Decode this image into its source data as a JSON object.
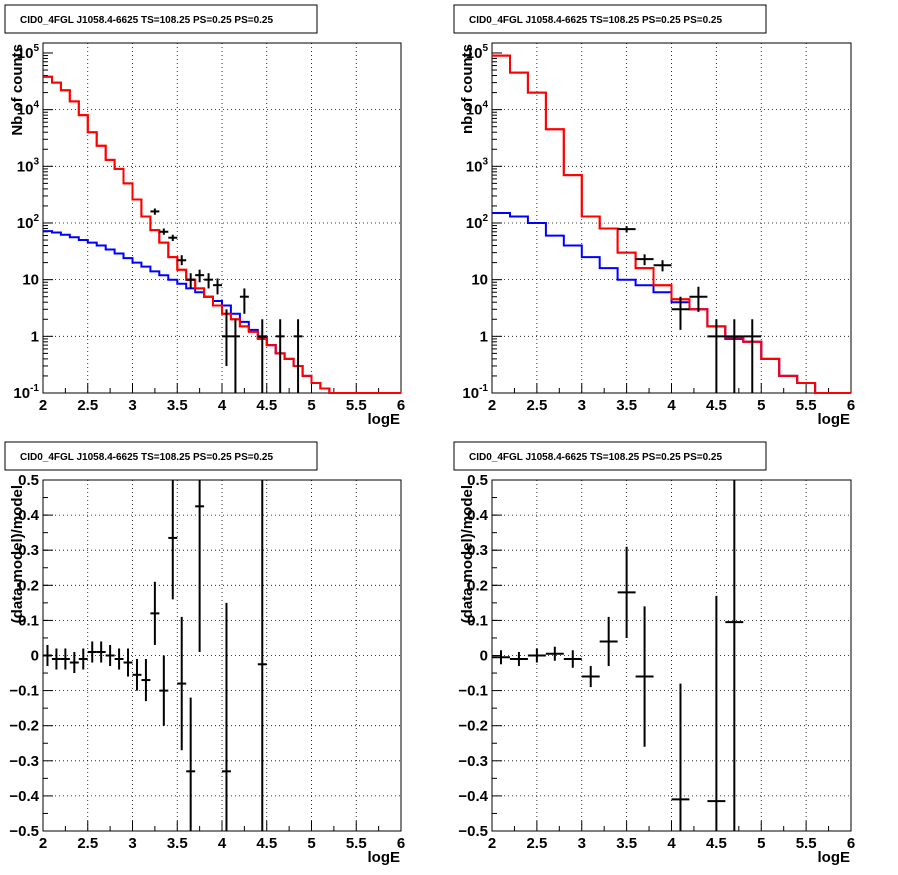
{
  "window": {
    "background": "#ffffff",
    "series_colors": {
      "model_total": "#ff0000",
      "model_source": "#0000ff",
      "data": "#000000"
    }
  },
  "chart_data": [
    {
      "type": "histogram-line",
      "title": "CID0_4FGL J1058.4-6625 TS=108.25 PS=0.25 PS=0.25",
      "xlabel": "logE",
      "ylabel": "Nb of counts",
      "xlim": [
        2,
        6
      ],
      "ylim": [
        0.1,
        150000
      ],
      "log_y": true,
      "grid": true,
      "xticks": [
        "2",
        "2.5",
        "3",
        "3.5",
        "4",
        "4.5",
        "5",
        "5.5",
        "6"
      ],
      "yticks": [
        {
          "v": 0.1,
          "base": "10",
          "exp": "-1"
        },
        {
          "v": 1,
          "text": "1"
        },
        {
          "v": 10,
          "text": "10"
        },
        {
          "v": 100,
          "base": "10",
          "exp": "2"
        },
        {
          "v": 1000,
          "base": "10",
          "exp": "3"
        },
        {
          "v": 10000,
          "base": "10",
          "exp": "4"
        },
        {
          "v": 100000,
          "base": "10",
          "exp": "5"
        }
      ],
      "bin_edges": [
        2.0,
        2.1,
        2.2,
        2.3,
        2.4,
        2.5,
        2.6,
        2.7,
        2.8,
        2.9,
        3.0,
        3.1,
        3.2,
        3.3,
        3.4,
        3.5,
        3.6,
        3.7,
        3.8,
        3.9,
        4.0,
        4.1,
        4.2,
        4.3,
        4.4,
        4.5,
        4.6,
        4.7,
        4.8,
        4.9,
        5.0,
        5.1,
        5.2,
        5.3,
        5.4,
        5.5,
        5.6,
        5.7,
        5.8,
        5.9,
        6.0
      ],
      "series": [
        {
          "name": "",
          "color": "#ff0000",
          "values": [
            38000,
            30000,
            22000,
            14000,
            8000,
            4000,
            2300,
            1300,
            900,
            500,
            260,
            130,
            75,
            45,
            25,
            15,
            10,
            7,
            5,
            3.5,
            2.5,
            2,
            1.5,
            1.2,
            0.9,
            0.7,
            0.5,
            0.4,
            0.3,
            0.2,
            0.15,
            0.12,
            0.1,
            0.1,
            0.1,
            0.1,
            0.1,
            0.1,
            0.1,
            0.1
          ]
        },
        {
          "name": "",
          "color": "#0000ff",
          "values": [
            72,
            68,
            62,
            56,
            50,
            45,
            40,
            34,
            29,
            24,
            20,
            17,
            14,
            12,
            10,
            8.5,
            7,
            6,
            5,
            4.2,
            3.5,
            2.5,
            1.8,
            1.3,
            0.95,
            0.7,
            0.5,
            0.4,
            0.3,
            0.2,
            0.15,
            0.12,
            0.1,
            0.1,
            0.1,
            0.1,
            0.1,
            0.1,
            0.1,
            0.1
          ]
        },
        {
          "name": "",
          "color": "#ff0000",
          "values": [
            38000,
            30000,
            22000,
            14000,
            8000,
            4000,
            2300,
            1300,
            900,
            500,
            260,
            130,
            75,
            45,
            25,
            15,
            10,
            7,
            5,
            3.5,
            2.5,
            2,
            1.5,
            1.2,
            0.9,
            0.7,
            0.5,
            0.4,
            0.3,
            0.2,
            0.15,
            0.12,
            0.1,
            0.1,
            0.1,
            0.1,
            0.1,
            0.1,
            0.1,
            0.1
          ]
        }
      ],
      "points": [
        {
          "x": 3.25,
          "y": 160,
          "lo": 140,
          "hi": 180
        },
        {
          "x": 3.35,
          "y": 70,
          "lo": 62,
          "hi": 80
        },
        {
          "x": 3.45,
          "y": 55,
          "lo": 48,
          "hi": 62
        },
        {
          "x": 3.55,
          "y": 22,
          "lo": 18,
          "hi": 27
        },
        {
          "x": 3.65,
          "y": 10,
          "lo": 7,
          "hi": 13
        },
        {
          "x": 3.75,
          "y": 12,
          "lo": 9,
          "hi": 15
        },
        {
          "x": 3.85,
          "y": 10,
          "lo": 7,
          "hi": 13
        },
        {
          "x": 3.95,
          "y": 8,
          "lo": 5.5,
          "hi": 10.5
        },
        {
          "x": 4.05,
          "y": 1,
          "lo": 0.3,
          "hi": 3
        },
        {
          "x": 4.15,
          "y": 1,
          "lo": 0.1,
          "hi": 2
        },
        {
          "x": 4.25,
          "y": 5,
          "lo": 2.5,
          "hi": 7
        },
        {
          "x": 4.45,
          "y": 1,
          "lo": 0.1,
          "hi": 2
        },
        {
          "x": 4.65,
          "y": 1,
          "lo": 0.1,
          "hi": 2
        },
        {
          "x": 4.85,
          "y": 1,
          "lo": 0.1,
          "hi": 2
        }
      ]
    },
    {
      "type": "histogram-line",
      "title": "CID0_4FGL J1058.4-6625 TS=108.25 PS=0.25 PS=0.25",
      "xlabel": "logE",
      "ylabel": "nb of counts",
      "xlim": [
        2,
        6
      ],
      "ylim": [
        0.1,
        150000
      ],
      "log_y": true,
      "grid": true,
      "xticks": [
        "2",
        "2.5",
        "3",
        "3.5",
        "4",
        "4.5",
        "5",
        "5.5",
        "6"
      ],
      "yticks": [
        {
          "v": 0.1,
          "base": "10",
          "exp": "-1"
        },
        {
          "v": 1,
          "text": "1"
        },
        {
          "v": 10,
          "text": "10"
        },
        {
          "v": 100,
          "base": "10",
          "exp": "2"
        },
        {
          "v": 1000,
          "base": "10",
          "exp": "3"
        },
        {
          "v": 10000,
          "base": "10",
          "exp": "4"
        },
        {
          "v": 100000,
          "base": "10",
          "exp": "5"
        }
      ],
      "bin_edges": [
        2.0,
        2.2,
        2.4,
        2.6,
        2.8,
        3.0,
        3.2,
        3.4,
        3.6,
        3.8,
        4.0,
        4.2,
        4.4,
        4.6,
        4.8,
        5.0,
        5.2,
        5.4,
        5.6,
        5.8,
        6.0
      ],
      "series": [
        {
          "name": "",
          "color": "#ff0000",
          "values": [
            90000,
            45000,
            20000,
            4500,
            700,
            130,
            80,
            30,
            16,
            8,
            4.5,
            3,
            1.5,
            0.95,
            0.8,
            0.4,
            0.2,
            0.15,
            0.1,
            0.1
          ]
        },
        {
          "name": "",
          "color": "#0000ff",
          "values": [
            150,
            130,
            100,
            60,
            40,
            25,
            16,
            10,
            8,
            6,
            4,
            3,
            1.5,
            0.9,
            0.8,
            0.4,
            0.2,
            0.15,
            0.1,
            0.1
          ]
        },
        {
          "name": "",
          "color": "#ff0000",
          "values": [
            90000,
            45000,
            20000,
            4500,
            700,
            130,
            80,
            30,
            16,
            8,
            4.5,
            3,
            1.5,
            0.95,
            0.8,
            0.4,
            0.2,
            0.15,
            0.1,
            0.1
          ]
        }
      ],
      "points": [
        {
          "x": 3.5,
          "y": 78,
          "lo": 68,
          "hi": 88
        },
        {
          "x": 3.7,
          "y": 23,
          "lo": 18,
          "hi": 28
        },
        {
          "x": 3.9,
          "y": 18,
          "lo": 14,
          "hi": 22
        },
        {
          "x": 4.1,
          "y": 3,
          "lo": 1.3,
          "hi": 5
        },
        {
          "x": 4.3,
          "y": 5,
          "lo": 2.7,
          "hi": 7.5
        },
        {
          "x": 4.5,
          "y": 1,
          "lo": 0.1,
          "hi": 2
        },
        {
          "x": 4.7,
          "y": 1,
          "lo": 0.1,
          "hi": 2
        },
        {
          "x": 4.9,
          "y": 1,
          "lo": 0.1,
          "hi": 2
        }
      ]
    },
    {
      "type": "scatter",
      "title": "CID0_4FGL J1058.4-6625 TS=108.25 PS=0.25 PS=0.25",
      "xlabel": "logE",
      "ylabel": "(data-model)/model",
      "xlim": [
        2,
        6
      ],
      "ylim": [
        -0.5,
        0.5
      ],
      "log_y": false,
      "grid": true,
      "xticks": [
        "2",
        "2.5",
        "3",
        "3.5",
        "4",
        "4.5",
        "5",
        "5.5",
        "6"
      ],
      "yticks": [
        {
          "v": -0.5,
          "text": "−0.5"
        },
        {
          "v": -0.4,
          "text": "−0.4"
        },
        {
          "v": -0.3,
          "text": "−0.3"
        },
        {
          "v": -0.2,
          "text": "−0.2"
        },
        {
          "v": -0.1,
          "text": "−0.1"
        },
        {
          "v": 0,
          "text": "0"
        },
        {
          "v": 0.1,
          "text": "0.1"
        },
        {
          "v": 0.2,
          "text": "0.2"
        },
        {
          "v": 0.3,
          "text": "0.3"
        },
        {
          "v": 0.4,
          "text": "0.4"
        },
        {
          "v": 0.5,
          "text": "0.5"
        }
      ],
      "points": [
        {
          "x": 2.05,
          "y": 0.0,
          "lo": -0.03,
          "hi": 0.03,
          "hw": 0.05
        },
        {
          "x": 2.15,
          "y": -0.01,
          "lo": -0.04,
          "hi": 0.02,
          "hw": 0.05
        },
        {
          "x": 2.25,
          "y": -0.01,
          "lo": -0.04,
          "hi": 0.02,
          "hw": 0.05
        },
        {
          "x": 2.35,
          "y": -0.02,
          "lo": -0.05,
          "hi": 0.01,
          "hw": 0.05
        },
        {
          "x": 2.45,
          "y": -0.01,
          "lo": -0.04,
          "hi": 0.02,
          "hw": 0.05
        },
        {
          "x": 2.55,
          "y": 0.01,
          "lo": -0.02,
          "hi": 0.04,
          "hw": 0.05
        },
        {
          "x": 2.65,
          "y": 0.01,
          "lo": -0.02,
          "hi": 0.04,
          "hw": 0.05
        },
        {
          "x": 2.75,
          "y": 0.0,
          "lo": -0.03,
          "hi": 0.03,
          "hw": 0.05
        },
        {
          "x": 2.85,
          "y": -0.01,
          "lo": -0.04,
          "hi": 0.02,
          "hw": 0.05
        },
        {
          "x": 2.95,
          "y": -0.02,
          "lo": -0.06,
          "hi": 0.02,
          "hw": 0.05
        },
        {
          "x": 3.05,
          "y": -0.055,
          "lo": -0.1,
          "hi": -0.01,
          "hw": 0.05
        },
        {
          "x": 3.15,
          "y": -0.07,
          "lo": -0.13,
          "hi": -0.01,
          "hw": 0.05
        },
        {
          "x": 3.25,
          "y": 0.12,
          "lo": 0.03,
          "hi": 0.21,
          "hw": 0.05
        },
        {
          "x": 3.35,
          "y": -0.1,
          "lo": -0.2,
          "hi": 0.0,
          "hw": 0.05
        },
        {
          "x": 3.45,
          "y": 0.335,
          "lo": 0.16,
          "hi": 0.5,
          "hw": 0.05
        },
        {
          "x": 3.55,
          "y": -0.08,
          "lo": -0.27,
          "hi": 0.11,
          "hw": 0.05
        },
        {
          "x": 3.65,
          "y": -0.33,
          "lo": -0.5,
          "hi": -0.12,
          "hw": 0.05
        },
        {
          "x": 3.75,
          "y": 0.425,
          "lo": 0.01,
          "hi": 0.5,
          "hw": 0.05
        },
        {
          "x": 4.05,
          "y": -0.33,
          "lo": -0.5,
          "hi": 0.15,
          "hw": 0.05
        },
        {
          "x": 4.45,
          "y": -0.025,
          "lo": -0.5,
          "hi": 0.5,
          "hw": 0.05
        }
      ]
    },
    {
      "type": "scatter",
      "title": "CID0_4FGL J1058.4-6625 TS=108.25 PS=0.25 PS=0.25",
      "xlabel": "logE",
      "ylabel": "(data-model)/model",
      "xlim": [
        2,
        6
      ],
      "ylim": [
        -0.5,
        0.5
      ],
      "log_y": false,
      "grid": true,
      "xticks": [
        "2",
        "2.5",
        "3",
        "3.5",
        "4",
        "4.5",
        "5",
        "5.5",
        "6"
      ],
      "yticks": [
        {
          "v": -0.5,
          "text": "−0.5"
        },
        {
          "v": -0.4,
          "text": "−0.4"
        },
        {
          "v": -0.3,
          "text": "−0.3"
        },
        {
          "v": -0.2,
          "text": "−0.2"
        },
        {
          "v": -0.1,
          "text": "−0.1"
        },
        {
          "v": 0,
          "text": "0"
        },
        {
          "v": 0.1,
          "text": "0.1"
        },
        {
          "v": 0.2,
          "text": "0.2"
        },
        {
          "v": 0.3,
          "text": "0.3"
        },
        {
          "v": 0.4,
          "text": "0.4"
        },
        {
          "v": 0.5,
          "text": "0.5"
        }
      ],
      "points": [
        {
          "x": 2.1,
          "y": -0.005,
          "lo": -0.025,
          "hi": 0.015,
          "hw": 0.1
        },
        {
          "x": 2.3,
          "y": -0.01,
          "lo": -0.03,
          "hi": 0.01,
          "hw": 0.1
        },
        {
          "x": 2.5,
          "y": 0.0,
          "lo": -0.02,
          "hi": 0.02,
          "hw": 0.1
        },
        {
          "x": 2.7,
          "y": 0.005,
          "lo": -0.015,
          "hi": 0.025,
          "hw": 0.1
        },
        {
          "x": 2.9,
          "y": -0.01,
          "lo": -0.035,
          "hi": 0.015,
          "hw": 0.1
        },
        {
          "x": 3.1,
          "y": -0.06,
          "lo": -0.09,
          "hi": -0.03,
          "hw": 0.1
        },
        {
          "x": 3.3,
          "y": 0.04,
          "lo": -0.03,
          "hi": 0.11,
          "hw": 0.1
        },
        {
          "x": 3.5,
          "y": 0.18,
          "lo": 0.05,
          "hi": 0.31,
          "hw": 0.1
        },
        {
          "x": 3.7,
          "y": -0.06,
          "lo": -0.26,
          "hi": 0.14,
          "hw": 0.1
        },
        {
          "x": 4.1,
          "y": -0.41,
          "lo": -0.5,
          "hi": -0.08,
          "hw": 0.1
        },
        {
          "x": 4.5,
          "y": -0.415,
          "lo": -0.5,
          "hi": 0.17,
          "hw": 0.1
        },
        {
          "x": 4.7,
          "y": 0.095,
          "lo": -0.5,
          "hi": 0.5,
          "hw": 0.1
        }
      ]
    }
  ]
}
